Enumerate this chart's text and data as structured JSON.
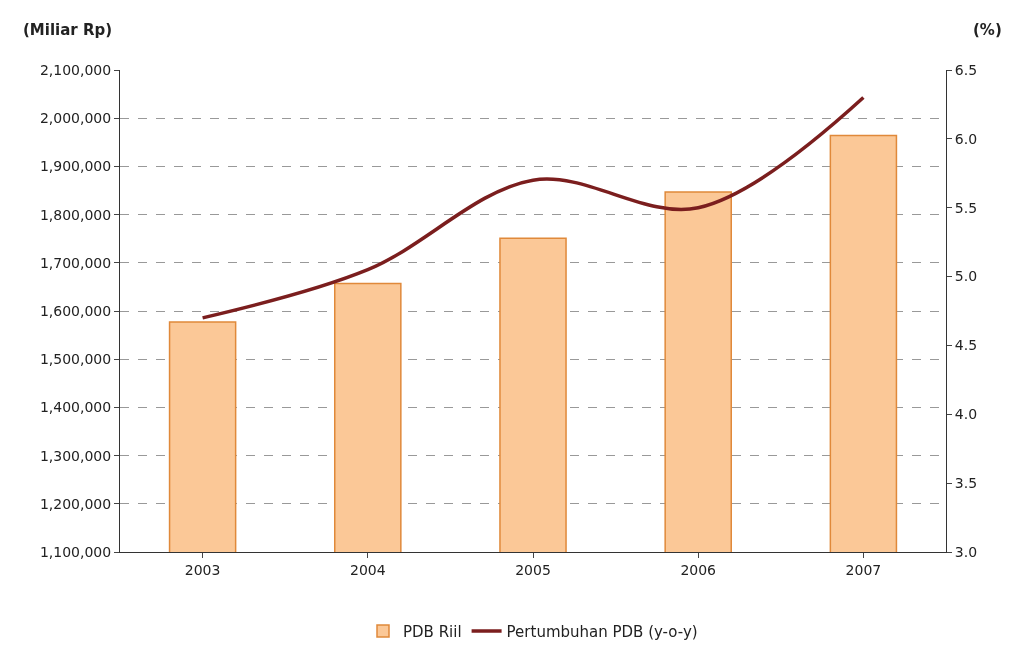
{
  "chart_data": {
    "type": "bar",
    "ylabel": "(Miliar Rp)",
    "y2label": "(%)",
    "categories": [
      "2003",
      "2004",
      "2005",
      "2006",
      "2007"
    ],
    "series": [
      {
        "name": "PDB Riil",
        "color": "#fbc897",
        "values": [
          1577000,
          1657000,
          1751000,
          1847000,
          1964000
        ]
      },
      {
        "name": "Pertumbuhan PDB (y-o-y)",
        "type": "line",
        "axis": "y2",
        "color": "#7b1e1e",
        "values": [
          4.7,
          5.05,
          5.7,
          5.5,
          6.3
        ]
      }
    ],
    "ylim": [
      1100000,
      2100000
    ],
    "yticks": [
      {
        "value": 1100000,
        "label": "1,100,000"
      },
      {
        "value": 1200000,
        "label": "1,200,000"
      },
      {
        "value": 1300000,
        "label": "1,300,000"
      },
      {
        "value": 1400000,
        "label": "1,400,000"
      },
      {
        "value": 1500000,
        "label": "1,500,000"
      },
      {
        "value": 1600000,
        "label": "1,600,000"
      },
      {
        "value": 1700000,
        "label": "1,700,000"
      },
      {
        "value": 1800000,
        "label": "1,800,000"
      },
      {
        "value": 1900000,
        "label": "1,900,000"
      },
      {
        "value": 2000000,
        "label": "2,000,000"
      },
      {
        "value": 2100000,
        "label": "2,100,000"
      }
    ],
    "y2lim": [
      3.0,
      6.5
    ],
    "y2ticks": [
      {
        "value": 3.0,
        "label": "3.0"
      },
      {
        "value": 3.5,
        "label": "3.5"
      },
      {
        "value": 4.0,
        "label": "4.0"
      },
      {
        "value": 4.5,
        "label": "4.5"
      },
      {
        "value": 5.0,
        "label": "5.0"
      },
      {
        "value": 5.5,
        "label": "5.5"
      },
      {
        "value": 6.0,
        "label": "6.0"
      },
      {
        "value": 6.5,
        "label": "6.5"
      }
    ],
    "grid": "y",
    "legend": "bottom",
    "marker": "none",
    "line_style": "solid"
  }
}
